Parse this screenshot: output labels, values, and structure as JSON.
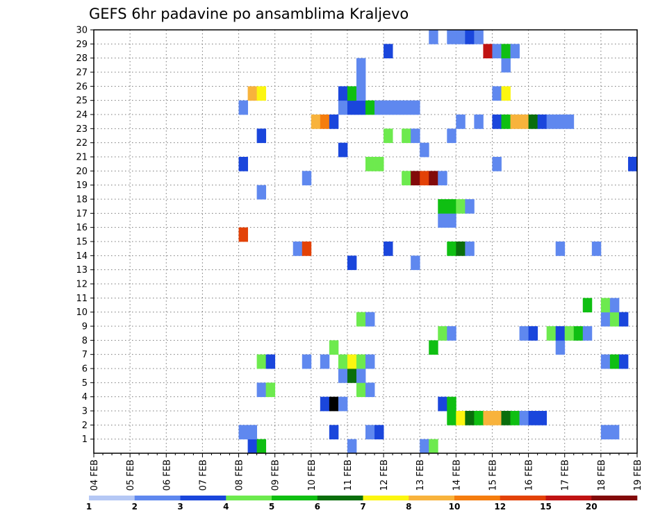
{
  "chart_data": {
    "type": "heatmap",
    "title": "GEFS 6hr padavine po ansamblima Kraljevo",
    "x_tick_labels": [
      "04 FEB",
      "05 FEB",
      "06 FEB",
      "07 FEB",
      "08 FEB",
      "09 FEB",
      "10 FEB",
      "11 FEB",
      "12 FEB",
      "13 FEB",
      "14 FEB",
      "15 FEB",
      "16 FEB",
      "17 FEB",
      "18 FEB",
      "19 FEB"
    ],
    "y_tick_labels": [
      "1",
      "2",
      "3",
      "4",
      "5",
      "6",
      "7",
      "8",
      "9",
      "10",
      "11",
      "12",
      "13",
      "14",
      "15",
      "16",
      "17",
      "18",
      "19",
      "20",
      "21",
      "22",
      "23",
      "24",
      "25",
      "26",
      "27",
      "28",
      "29",
      "30"
    ],
    "xlim_steps": [
      0,
      60
    ],
    "ylim": [
      0,
      30
    ],
    "steps_per_day": 4,
    "grid": true,
    "colorbar": {
      "labels": [
        "1",
        "2",
        "3",
        "4",
        "5",
        "6",
        "7",
        "8",
        "10",
        "12",
        "15",
        "20"
      ],
      "colors": [
        "#b5c8f5",
        "#5f88ef",
        "#1a46dc",
        "#6dea4e",
        "#0fbf12",
        "#0a6e0c",
        "#fcf610",
        "#f8b33c",
        "#f57d0e",
        "#e34207",
        "#c01313",
        "#820a0a"
      ]
    },
    "cells": [
      [
        0,
        17,
        2
      ],
      [
        0,
        18,
        4
      ],
      [
        0,
        28,
        1
      ],
      [
        0,
        36,
        1
      ],
      [
        0,
        37,
        3
      ],
      [
        1,
        16,
        1
      ],
      [
        1,
        17,
        1
      ],
      [
        1,
        26,
        2
      ],
      [
        1,
        30,
        1
      ],
      [
        1,
        31,
        2
      ],
      [
        1,
        56,
        1
      ],
      [
        1,
        57,
        1
      ],
      [
        2,
        39,
        4
      ],
      [
        2,
        40,
        6
      ],
      [
        2,
        41,
        5
      ],
      [
        2,
        42,
        4
      ],
      [
        2,
        43,
        7
      ],
      [
        2,
        44,
        7
      ],
      [
        2,
        45,
        5
      ],
      [
        2,
        46,
        4
      ],
      [
        2,
        47,
        1
      ],
      [
        2,
        48,
        2
      ],
      [
        2,
        49,
        2
      ],
      [
        3,
        25,
        2
      ],
      [
        3,
        26,
        12
      ],
      [
        3,
        27,
        1
      ],
      [
        3,
        38,
        2
      ],
      [
        3,
        39,
        4
      ],
      [
        4,
        18,
        1
      ],
      [
        4,
        19,
        3
      ],
      [
        4,
        29,
        3
      ],
      [
        4,
        30,
        1
      ],
      [
        5,
        27,
        1
      ],
      [
        5,
        28,
        5
      ],
      [
        5,
        29,
        1
      ],
      [
        6,
        18,
        3
      ],
      [
        6,
        19,
        2
      ],
      [
        6,
        23,
        1
      ],
      [
        6,
        25,
        1
      ],
      [
        6,
        27,
        3
      ],
      [
        6,
        28,
        6
      ],
      [
        6,
        29,
        3
      ],
      [
        6,
        30,
        1
      ],
      [
        6,
        56,
        1
      ],
      [
        6,
        57,
        4
      ],
      [
        6,
        58,
        2
      ],
      [
        7,
        26,
        3
      ],
      [
        7,
        37,
        4
      ],
      [
        7,
        51,
        1
      ],
      [
        8,
        38,
        3
      ],
      [
        8,
        39,
        1
      ],
      [
        8,
        47,
        1
      ],
      [
        8,
        48,
        2
      ],
      [
        8,
        50,
        3
      ],
      [
        8,
        51,
        2
      ],
      [
        8,
        52,
        3
      ],
      [
        8,
        53,
        4
      ],
      [
        8,
        54,
        1
      ],
      [
        9,
        29,
        3
      ],
      [
        9,
        30,
        1
      ],
      [
        9,
        56,
        1
      ],
      [
        9,
        57,
        3
      ],
      [
        9,
        58,
        2
      ],
      [
        10,
        54,
        4
      ],
      [
        10,
        56,
        3
      ],
      [
        10,
        57,
        1
      ],
      [
        13,
        28,
        2
      ],
      [
        13,
        35,
        1
      ],
      [
        14,
        22,
        1
      ],
      [
        14,
        23,
        9
      ],
      [
        14,
        32,
        2
      ],
      [
        14,
        39,
        4
      ],
      [
        14,
        40,
        5
      ],
      [
        14,
        41,
        1
      ],
      [
        14,
        51,
        1
      ],
      [
        14,
        55,
        1
      ],
      [
        15,
        16,
        9
      ],
      [
        16,
        38,
        1
      ],
      [
        16,
        39,
        1
      ],
      [
        17,
        38,
        4
      ],
      [
        17,
        39,
        4
      ],
      [
        17,
        40,
        3
      ],
      [
        17,
        41,
        1
      ],
      [
        18,
        18,
        1
      ],
      [
        19,
        23,
        1
      ],
      [
        19,
        34,
        3
      ],
      [
        19,
        35,
        11
      ],
      [
        19,
        36,
        9
      ],
      [
        19,
        37,
        11
      ],
      [
        19,
        38,
        1
      ],
      [
        20,
        16,
        2
      ],
      [
        20,
        30,
        3
      ],
      [
        20,
        31,
        3
      ],
      [
        20,
        44,
        1
      ],
      [
        20,
        59,
        2
      ],
      [
        21,
        27,
        2
      ],
      [
        21,
        36,
        1
      ],
      [
        22,
        18,
        2
      ],
      [
        22,
        32,
        3
      ],
      [
        22,
        34,
        3
      ],
      [
        22,
        35,
        1
      ],
      [
        22,
        39,
        1
      ],
      [
        23,
        24,
        7
      ],
      [
        23,
        25,
        8
      ],
      [
        23,
        26,
        2
      ],
      [
        23,
        40,
        1
      ],
      [
        23,
        42,
        1
      ],
      [
        23,
        44,
        2
      ],
      [
        23,
        45,
        4
      ],
      [
        23,
        46,
        7
      ],
      [
        23,
        47,
        7
      ],
      [
        23,
        48,
        5
      ],
      [
        23,
        49,
        2
      ],
      [
        23,
        50,
        1
      ],
      [
        23,
        51,
        1
      ],
      [
        23,
        52,
        1
      ],
      [
        24,
        16,
        1
      ],
      [
        24,
        27,
        1
      ],
      [
        24,
        28,
        2
      ],
      [
        24,
        29,
        2
      ],
      [
        24,
        30,
        4
      ],
      [
        24,
        31,
        1
      ],
      [
        24,
        32,
        1
      ],
      [
        24,
        33,
        1
      ],
      [
        24,
        34,
        1
      ],
      [
        24,
        35,
        1
      ],
      [
        25,
        17,
        7
      ],
      [
        25,
        18,
        6
      ],
      [
        25,
        27,
        2
      ],
      [
        25,
        28,
        4
      ],
      [
        25,
        29,
        1
      ],
      [
        25,
        44,
        1
      ],
      [
        25,
        45,
        6
      ],
      [
        26,
        29,
        1
      ],
      [
        27,
        29,
        1
      ],
      [
        27,
        45,
        1
      ],
      [
        28,
        32,
        2
      ],
      [
        28,
        43,
        10
      ],
      [
        28,
        44,
        1
      ],
      [
        28,
        45,
        4
      ],
      [
        28,
        46,
        1
      ],
      [
        29,
        37,
        1
      ],
      [
        29,
        39,
        1
      ],
      [
        29,
        40,
        1
      ],
      [
        29,
        41,
        2
      ],
      [
        29,
        42,
        1
      ]
    ]
  }
}
